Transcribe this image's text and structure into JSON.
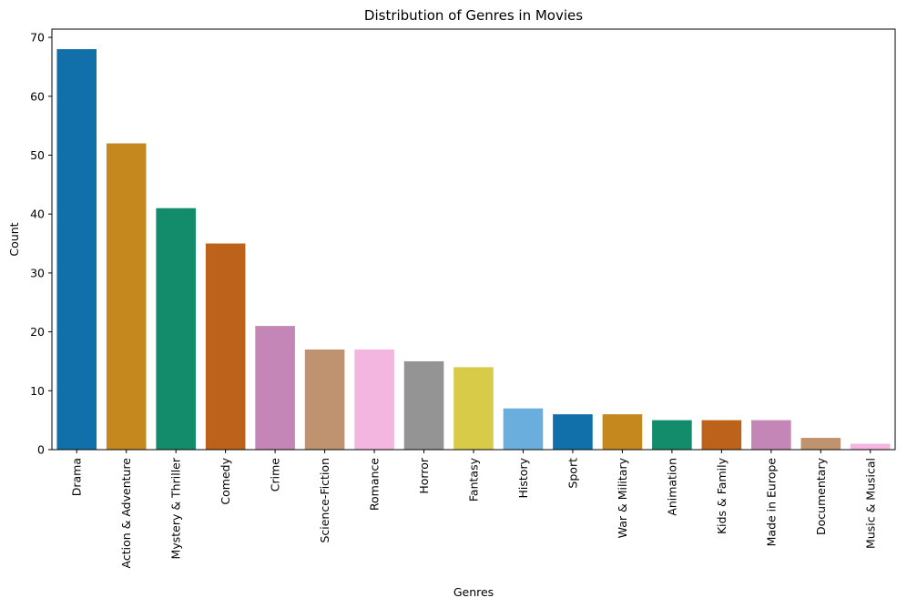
{
  "chart_data": {
    "type": "bar",
    "title": "Distribution of Genres in Movies",
    "xlabel": "Genres",
    "ylabel": "Count",
    "ylim": [
      0,
      71.4
    ],
    "yticks": [
      0,
      10,
      20,
      30,
      40,
      50,
      60,
      70
    ],
    "grid": false,
    "categories": [
      "Drama",
      "Action & Adventure",
      "Mystery & Thriller",
      "Comedy",
      "Crime",
      "Science-Fiction",
      "Romance",
      "Horror",
      "Fantasy",
      "History",
      "Sport",
      "War & Military",
      "Animation",
      "Kids & Family",
      "Made in Europe",
      "Documentary",
      "Music & Musical"
    ],
    "values": [
      68,
      52,
      41,
      35,
      21,
      17,
      17,
      15,
      14,
      7,
      6,
      6,
      5,
      5,
      5,
      2,
      1
    ],
    "colors": [
      "#1170aa",
      "#c4881f",
      "#138c6c",
      "#bd621b",
      "#c386b6",
      "#bf9370",
      "#f2b6e0",
      "#949494",
      "#d8cb47",
      "#6aaede",
      "#1170aa",
      "#c4881f",
      "#138c6c",
      "#bd621b",
      "#c386b6",
      "#bf9370",
      "#f2b6e0"
    ]
  }
}
